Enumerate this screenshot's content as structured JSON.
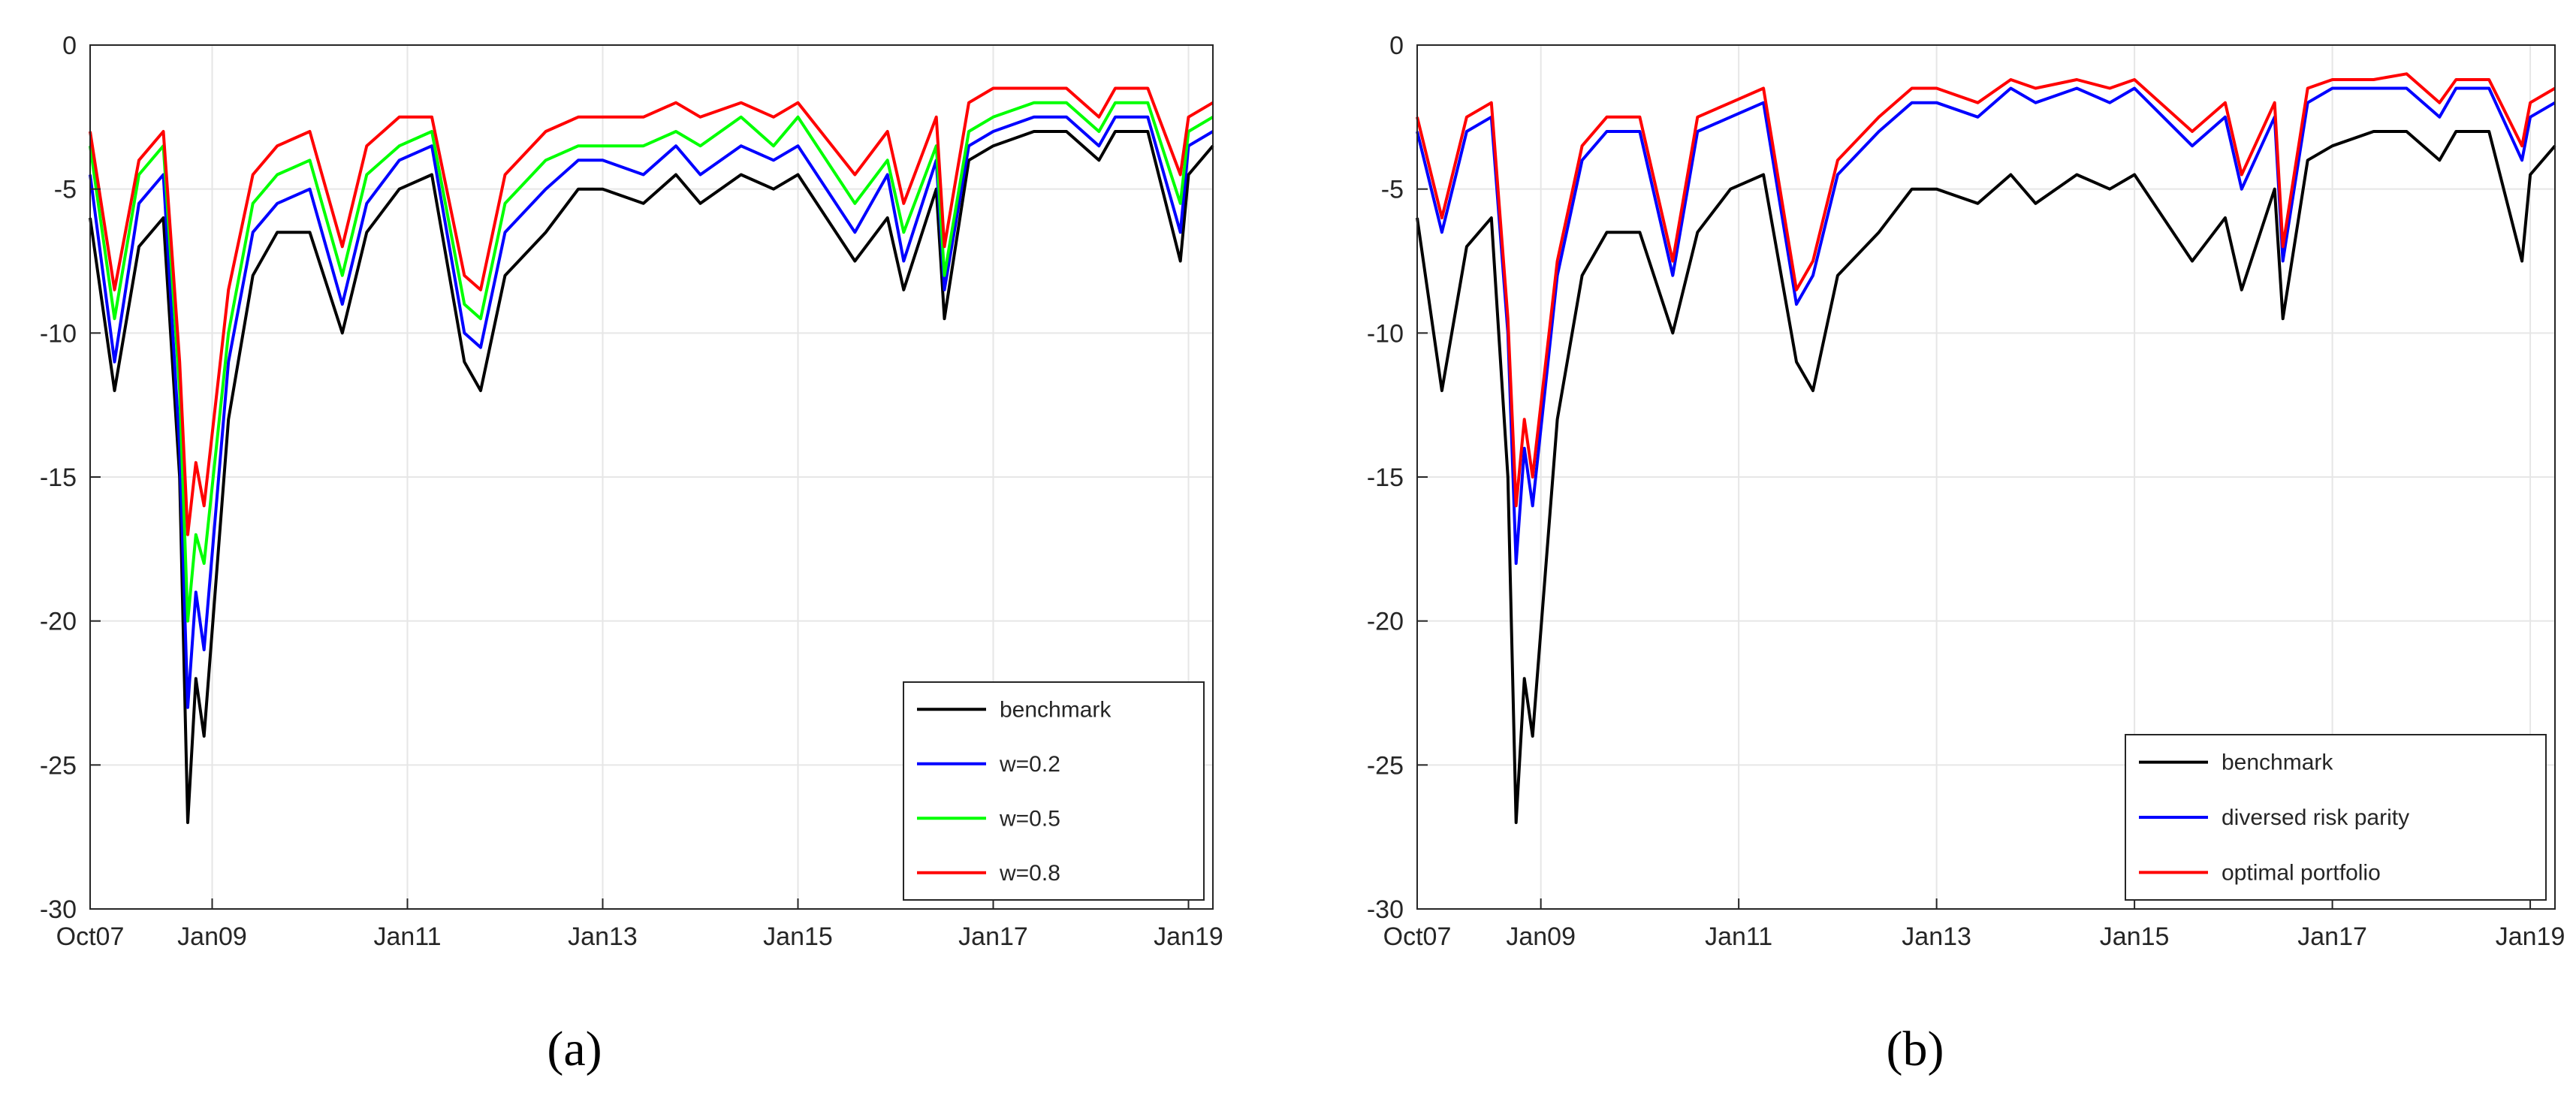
{
  "chart_data": [
    {
      "type": "line",
      "panel_label": "(a)",
      "x_ticks": [
        "Oct07",
        "Jan09",
        "Jan11",
        "Jan13",
        "Jan15",
        "Jan17",
        "Jan19"
      ],
      "y_ticks": [
        "0",
        "-5",
        "-10",
        "-15",
        "-20",
        "-25",
        "-30"
      ],
      "ylim": [
        -30,
        0
      ],
      "xlim": [
        "2007-10",
        "2019-04"
      ],
      "grid": true,
      "legend_position": "bottom-right",
      "series": [
        {
          "name": "benchmark",
          "color": "#000000",
          "x": [
            "2007-10",
            "2008-01",
            "2008-04",
            "2008-07",
            "2008-09",
            "2008-10",
            "2008-11",
            "2008-12",
            "2009-03",
            "2009-06",
            "2009-09",
            "2010-01",
            "2010-05",
            "2010-08",
            "2010-12",
            "2011-04",
            "2011-08",
            "2011-10",
            "2012-01",
            "2012-06",
            "2012-10",
            "2013-01",
            "2013-06",
            "2013-10",
            "2014-01",
            "2014-06",
            "2014-10",
            "2015-01",
            "2015-08",
            "2015-12",
            "2016-02",
            "2016-06",
            "2016-07",
            "2016-10",
            "2017-01",
            "2017-06",
            "2017-10",
            "2018-02",
            "2018-04",
            "2018-08",
            "2018-12",
            "2019-01",
            "2019-04"
          ],
          "y": [
            -6,
            -12,
            -7,
            -6,
            -15,
            -27,
            -22,
            -24,
            -13,
            -8,
            -6.5,
            -6.5,
            -10,
            -6.5,
            -5,
            -4.5,
            -11,
            -12,
            -8,
            -6.5,
            -5,
            -5,
            -5.5,
            -4.5,
            -5.5,
            -4.5,
            -5,
            -4.5,
            -7.5,
            -6,
            -8.5,
            -5,
            -9.5,
            -4,
            -3.5,
            -3,
            -3,
            -4,
            -3,
            -3,
            -7.5,
            -4.5,
            -3.5
          ]
        },
        {
          "name": "w=0.2",
          "color": "#0000ff",
          "x": [
            "2007-10",
            "2008-01",
            "2008-04",
            "2008-07",
            "2008-09",
            "2008-10",
            "2008-11",
            "2008-12",
            "2009-03",
            "2009-06",
            "2009-09",
            "2010-01",
            "2010-05",
            "2010-08",
            "2010-12",
            "2011-04",
            "2011-08",
            "2011-10",
            "2012-01",
            "2012-06",
            "2012-10",
            "2013-01",
            "2013-06",
            "2013-10",
            "2014-01",
            "2014-06",
            "2014-10",
            "2015-01",
            "2015-08",
            "2015-12",
            "2016-02",
            "2016-06",
            "2016-07",
            "2016-10",
            "2017-01",
            "2017-06",
            "2017-10",
            "2018-02",
            "2018-04",
            "2018-08",
            "2018-12",
            "2019-01",
            "2019-04"
          ],
          "y": [
            -4.5,
            -11,
            -5.5,
            -4.5,
            -14,
            -23,
            -19,
            -21,
            -11,
            -6.5,
            -5.5,
            -5,
            -9,
            -5.5,
            -4,
            -3.5,
            -10,
            -10.5,
            -6.5,
            -5,
            -4,
            -4,
            -4.5,
            -3.5,
            -4.5,
            -3.5,
            -4,
            -3.5,
            -6.5,
            -4.5,
            -7.5,
            -4,
            -8.5,
            -3.5,
            -3,
            -2.5,
            -2.5,
            -3.5,
            -2.5,
            -2.5,
            -6.5,
            -3.5,
            -3
          ]
        },
        {
          "name": "w=0.5",
          "color": "#00ff00",
          "x": [
            "2007-10",
            "2008-01",
            "2008-04",
            "2008-07",
            "2008-09",
            "2008-10",
            "2008-11",
            "2008-12",
            "2009-03",
            "2009-06",
            "2009-09",
            "2010-01",
            "2010-05",
            "2010-08",
            "2010-12",
            "2011-04",
            "2011-08",
            "2011-10",
            "2012-01",
            "2012-06",
            "2012-10",
            "2013-01",
            "2013-06",
            "2013-10",
            "2014-01",
            "2014-06",
            "2014-10",
            "2015-01",
            "2015-08",
            "2015-12",
            "2016-02",
            "2016-06",
            "2016-07",
            "2016-10",
            "2017-01",
            "2017-06",
            "2017-10",
            "2018-02",
            "2018-04",
            "2018-08",
            "2018-12",
            "2019-01",
            "2019-04"
          ],
          "y": [
            -3.5,
            -9.5,
            -4.5,
            -3.5,
            -12,
            -20,
            -17,
            -18,
            -10,
            -5.5,
            -4.5,
            -4,
            -8,
            -4.5,
            -3.5,
            -3,
            -9,
            -9.5,
            -5.5,
            -4,
            -3.5,
            -3.5,
            -3.5,
            -3,
            -3.5,
            -2.5,
            -3.5,
            -2.5,
            -5.5,
            -4,
            -6.5,
            -3.5,
            -8,
            -3,
            -2.5,
            -2,
            -2,
            -3,
            -2,
            -2,
            -5.5,
            -3,
            -2.5
          ]
        },
        {
          "name": "w=0.8",
          "color": "#ff0000",
          "x": [
            "2007-10",
            "2008-01",
            "2008-04",
            "2008-07",
            "2008-09",
            "2008-10",
            "2008-11",
            "2008-12",
            "2009-03",
            "2009-06",
            "2009-09",
            "2010-01",
            "2010-05",
            "2010-08",
            "2010-12",
            "2011-04",
            "2011-08",
            "2011-10",
            "2012-01",
            "2012-06",
            "2012-10",
            "2013-01",
            "2013-06",
            "2013-10",
            "2014-01",
            "2014-06",
            "2014-10",
            "2015-01",
            "2015-08",
            "2015-12",
            "2016-02",
            "2016-06",
            "2016-07",
            "2016-10",
            "2017-01",
            "2017-06",
            "2017-10",
            "2018-02",
            "2018-04",
            "2018-08",
            "2018-12",
            "2019-01",
            "2019-04"
          ],
          "y": [
            -3,
            -8.5,
            -4,
            -3,
            -11,
            -17,
            -14.5,
            -16,
            -8.5,
            -4.5,
            -3.5,
            -3,
            -7,
            -3.5,
            -2.5,
            -2.5,
            -8,
            -8.5,
            -4.5,
            -3,
            -2.5,
            -2.5,
            -2.5,
            -2,
            -2.5,
            -2,
            -2.5,
            -2,
            -4.5,
            -3,
            -5.5,
            -2.5,
            -7,
            -2,
            -1.5,
            -1.5,
            -1.5,
            -2.5,
            -1.5,
            -1.5,
            -4.5,
            -2.5,
            -2
          ]
        }
      ]
    },
    {
      "type": "line",
      "panel_label": "(b)",
      "x_ticks": [
        "Oct07",
        "Jan09",
        "Jan11",
        "Jan13",
        "Jan15",
        "Jan17",
        "Jan19"
      ],
      "y_ticks": [
        "0",
        "-5",
        "-10",
        "-15",
        "-20",
        "-25",
        "-30"
      ],
      "ylim": [
        -30,
        0
      ],
      "xlim": [
        "2007-10",
        "2019-04"
      ],
      "grid": true,
      "legend_position": "bottom-right",
      "series": [
        {
          "name": "benchmark",
          "color": "#000000",
          "x": [
            "2007-10",
            "2008-01",
            "2008-04",
            "2008-07",
            "2008-09",
            "2008-10",
            "2008-11",
            "2008-12",
            "2009-03",
            "2009-06",
            "2009-09",
            "2010-01",
            "2010-05",
            "2010-08",
            "2010-12",
            "2011-04",
            "2011-08",
            "2011-10",
            "2012-01",
            "2012-06",
            "2012-10",
            "2013-01",
            "2013-06",
            "2013-10",
            "2014-01",
            "2014-06",
            "2014-10",
            "2015-01",
            "2015-08",
            "2015-12",
            "2016-02",
            "2016-06",
            "2016-07",
            "2016-10",
            "2017-01",
            "2017-06",
            "2017-10",
            "2018-02",
            "2018-04",
            "2018-08",
            "2018-12",
            "2019-01",
            "2019-04"
          ],
          "y": [
            -6,
            -12,
            -7,
            -6,
            -15,
            -27,
            -22,
            -24,
            -13,
            -8,
            -6.5,
            -6.5,
            -10,
            -6.5,
            -5,
            -4.5,
            -11,
            -12,
            -8,
            -6.5,
            -5,
            -5,
            -5.5,
            -4.5,
            -5.5,
            -4.5,
            -5,
            -4.5,
            -7.5,
            -6,
            -8.5,
            -5,
            -9.5,
            -4,
            -3.5,
            -3,
            -3,
            -4,
            -3,
            -3,
            -7.5,
            -4.5,
            -3.5
          ]
        },
        {
          "name": "diversed risk parity",
          "color": "#0000ff",
          "x": [
            "2007-10",
            "2008-01",
            "2008-04",
            "2008-07",
            "2008-09",
            "2008-10",
            "2008-11",
            "2008-12",
            "2009-03",
            "2009-06",
            "2009-09",
            "2010-01",
            "2010-05",
            "2010-08",
            "2010-12",
            "2011-04",
            "2011-08",
            "2011-10",
            "2012-01",
            "2012-06",
            "2012-10",
            "2013-01",
            "2013-06",
            "2013-10",
            "2014-01",
            "2014-06",
            "2014-10",
            "2015-01",
            "2015-08",
            "2015-12",
            "2016-02",
            "2016-06",
            "2016-07",
            "2016-10",
            "2017-01",
            "2017-06",
            "2017-10",
            "2018-02",
            "2018-04",
            "2018-08",
            "2018-12",
            "2019-01",
            "2019-04"
          ],
          "y": [
            -3,
            -6.5,
            -3,
            -2.5,
            -10,
            -18,
            -14,
            -16,
            -8,
            -4,
            -3,
            -3,
            -8,
            -3,
            -2.5,
            -2,
            -9,
            -8,
            -4.5,
            -3,
            -2,
            -2,
            -2.5,
            -1.5,
            -2,
            -1.5,
            -2,
            -1.5,
            -3.5,
            -2.5,
            -5,
            -2.5,
            -7.5,
            -2,
            -1.5,
            -1.5,
            -1.5,
            -2.5,
            -1.5,
            -1.5,
            -4,
            -2.5,
            -2
          ]
        },
        {
          "name": "optimal portfolio",
          "color": "#ff0000",
          "x": [
            "2007-10",
            "2008-01",
            "2008-04",
            "2008-07",
            "2008-09",
            "2008-10",
            "2008-11",
            "2008-12",
            "2009-03",
            "2009-06",
            "2009-09",
            "2010-01",
            "2010-05",
            "2010-08",
            "2010-12",
            "2011-04",
            "2011-08",
            "2011-10",
            "2012-01",
            "2012-06",
            "2012-10",
            "2013-01",
            "2013-06",
            "2013-10",
            "2014-01",
            "2014-06",
            "2014-10",
            "2015-01",
            "2015-08",
            "2015-12",
            "2016-02",
            "2016-06",
            "2016-07",
            "2016-10",
            "2017-01",
            "2017-06",
            "2017-10",
            "2018-02",
            "2018-04",
            "2018-08",
            "2018-12",
            "2019-01",
            "2019-04"
          ],
          "y": [
            -2.5,
            -6,
            -2.5,
            -2,
            -9.5,
            -16,
            -13,
            -15,
            -7.5,
            -3.5,
            -2.5,
            -2.5,
            -7.5,
            -2.5,
            -2,
            -1.5,
            -8.5,
            -7.5,
            -4,
            -2.5,
            -1.5,
            -1.5,
            -2,
            -1.2,
            -1.5,
            -1.2,
            -1.5,
            -1.2,
            -3,
            -2,
            -4.5,
            -2,
            -7,
            -1.5,
            -1.2,
            -1.2,
            -1,
            -2,
            -1.2,
            -1.2,
            -3.5,
            -2,
            -1.5
          ]
        }
      ]
    }
  ]
}
